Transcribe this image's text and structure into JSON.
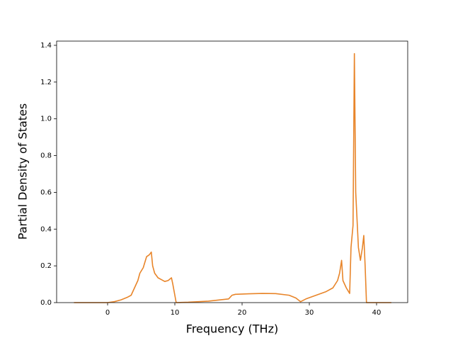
{
  "chart_data": {
    "type": "line",
    "xlabel": "Frequency (THz)",
    "ylabel": "Partial Density of States",
    "x": [
      -5,
      0,
      1,
      2,
      3,
      3.5,
      4,
      4.5,
      4.8,
      5.3,
      5.8,
      6.2,
      6.5,
      6.7,
      7,
      7.5,
      8,
      8.5,
      9,
      9.5,
      9.7,
      10,
      10.2,
      12,
      15,
      18,
      18.5,
      19,
      21,
      23,
      25,
      27,
      28,
      28.7,
      29.5,
      31,
      32.5,
      33.5,
      34.2,
      34.5,
      34.8,
      35,
      35.5,
      36,
      36.2,
      36.5,
      36.7,
      36.9,
      37.3,
      37.6,
      37.9,
      38.1,
      38.3,
      38.5,
      40,
      42.2
    ],
    "values": [
      0,
      0,
      0.005,
      0.015,
      0.03,
      0.04,
      0.08,
      0.12,
      0.16,
      0.19,
      0.25,
      0.26,
      0.275,
      0.2,
      0.16,
      0.135,
      0.125,
      0.115,
      0.12,
      0.135,
      0.1,
      0.04,
      0,
      0.002,
      0.008,
      0.02,
      0.04,
      0.045,
      0.048,
      0.05,
      0.049,
      0.04,
      0.025,
      0.005,
      0.02,
      0.04,
      0.06,
      0.08,
      0.12,
      0.16,
      0.23,
      0.12,
      0.08,
      0.05,
      0.3,
      0.42,
      1.355,
      0.6,
      0.3,
      0.23,
      0.3,
      0.365,
      0.2,
      0,
      0,
      0
    ],
    "color": "#e8852a",
    "xlim": [
      -7.58,
      44.63
    ],
    "ylim": [
      0,
      1.423
    ],
    "xticks": [
      0,
      10,
      20,
      30,
      40
    ],
    "yticks": [
      {
        "value": 0,
        "label": "0.0"
      },
      {
        "value": 0.2,
        "label": "0.2"
      },
      {
        "value": 0.4,
        "label": "0.4"
      },
      {
        "value": 0.6,
        "label": "0.6"
      },
      {
        "value": 0.8,
        "label": "0.8"
      },
      {
        "value": 1.0,
        "label": "1.0"
      },
      {
        "value": 1.2,
        "label": "1.2"
      },
      {
        "value": 1.4,
        "label": "1.4"
      }
    ]
  }
}
